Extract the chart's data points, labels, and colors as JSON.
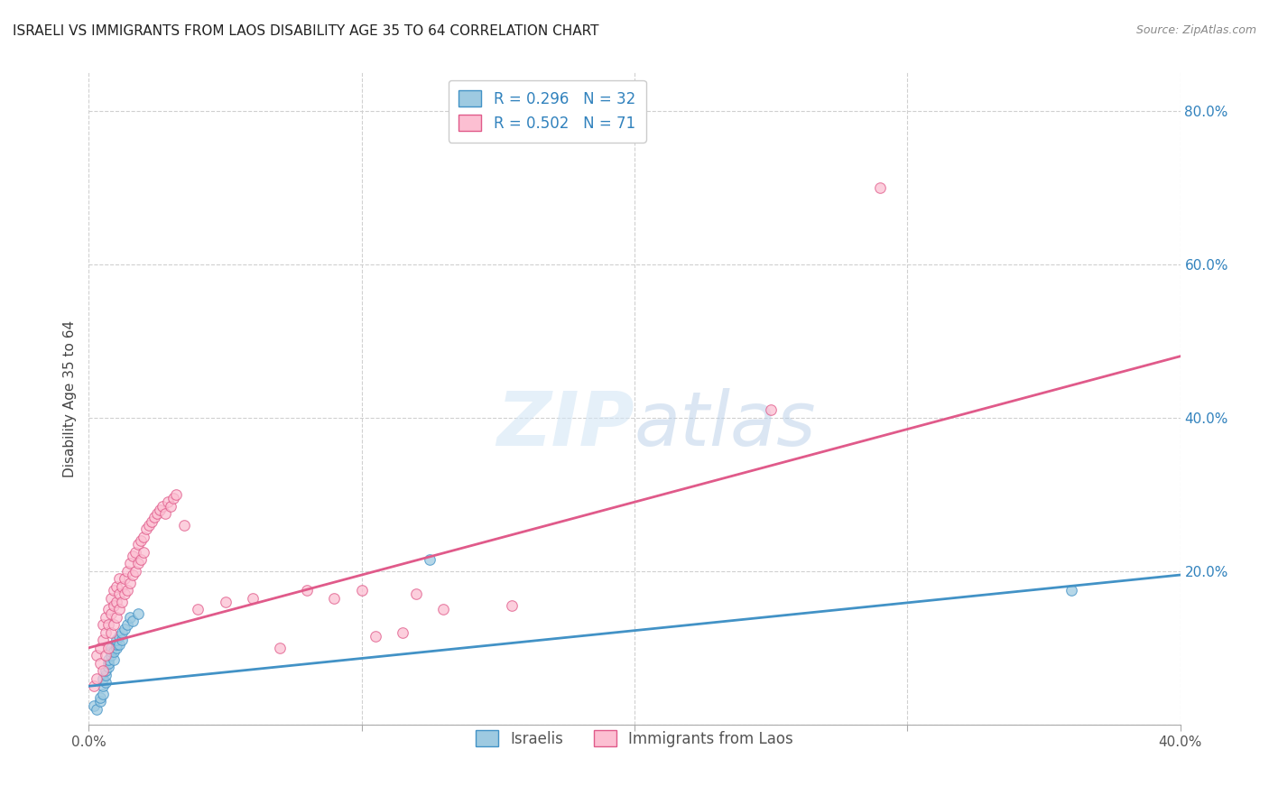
{
  "title": "ISRAELI VS IMMIGRANTS FROM LAOS DISABILITY AGE 35 TO 64 CORRELATION CHART",
  "source": "Source: ZipAtlas.com",
  "ylabel": "Disability Age 35 to 64",
  "xlim": [
    0.0,
    0.4
  ],
  "ylim": [
    0.0,
    0.85
  ],
  "xticks": [
    0.0,
    0.1,
    0.2,
    0.3,
    0.4
  ],
  "xtick_labels": [
    "0.0%",
    "",
    "",
    "",
    "40.0%"
  ],
  "yticks": [
    0.0,
    0.2,
    0.4,
    0.6,
    0.8
  ],
  "ytick_labels_right": [
    "",
    "20.0%",
    "40.0%",
    "60.0%",
    "80.0%"
  ],
  "legend_label1": "Israelis",
  "legend_label2": "Immigrants from Laos",
  "R1": "0.296",
  "N1": "32",
  "R2": "0.502",
  "N2": "71",
  "color_blue": "#9ecae1",
  "color_pink": "#fcbfd2",
  "color_blue_line": "#4292c6",
  "color_pink_line": "#e05a8a",
  "color_blue_text": "#3182bd",
  "color_pink_text": "#e05a8a",
  "watermark_color": "#d4e6f5",
  "blue_points_x": [
    0.002,
    0.003,
    0.004,
    0.004,
    0.005,
    0.005,
    0.005,
    0.006,
    0.006,
    0.006,
    0.007,
    0.007,
    0.007,
    0.008,
    0.008,
    0.008,
    0.009,
    0.009,
    0.01,
    0.01,
    0.01,
    0.011,
    0.011,
    0.012,
    0.012,
    0.013,
    0.014,
    0.015,
    0.016,
    0.018,
    0.36,
    0.125
  ],
  "blue_points_y": [
    0.025,
    0.02,
    0.03,
    0.035,
    0.04,
    0.05,
    0.06,
    0.055,
    0.065,
    0.07,
    0.075,
    0.08,
    0.085,
    0.09,
    0.095,
    0.1,
    0.085,
    0.095,
    0.1,
    0.105,
    0.11,
    0.105,
    0.115,
    0.11,
    0.12,
    0.125,
    0.13,
    0.14,
    0.135,
    0.145,
    0.175,
    0.215
  ],
  "pink_points_x": [
    0.002,
    0.003,
    0.003,
    0.004,
    0.004,
    0.005,
    0.005,
    0.005,
    0.006,
    0.006,
    0.006,
    0.007,
    0.007,
    0.007,
    0.008,
    0.008,
    0.008,
    0.009,
    0.009,
    0.009,
    0.01,
    0.01,
    0.01,
    0.011,
    0.011,
    0.011,
    0.012,
    0.012,
    0.013,
    0.013,
    0.014,
    0.014,
    0.015,
    0.015,
    0.016,
    0.016,
    0.017,
    0.017,
    0.018,
    0.018,
    0.019,
    0.019,
    0.02,
    0.02,
    0.021,
    0.022,
    0.023,
    0.024,
    0.025,
    0.026,
    0.027,
    0.028,
    0.029,
    0.03,
    0.031,
    0.032,
    0.035,
    0.04,
    0.05,
    0.06,
    0.07,
    0.08,
    0.09,
    0.1,
    0.105,
    0.115,
    0.12,
    0.13,
    0.155,
    0.25,
    0.29
  ],
  "pink_points_y": [
    0.05,
    0.06,
    0.09,
    0.08,
    0.1,
    0.07,
    0.11,
    0.13,
    0.09,
    0.12,
    0.14,
    0.1,
    0.13,
    0.15,
    0.12,
    0.145,
    0.165,
    0.13,
    0.155,
    0.175,
    0.14,
    0.16,
    0.18,
    0.15,
    0.17,
    0.19,
    0.16,
    0.18,
    0.17,
    0.19,
    0.175,
    0.2,
    0.185,
    0.21,
    0.195,
    0.22,
    0.2,
    0.225,
    0.21,
    0.235,
    0.215,
    0.24,
    0.225,
    0.245,
    0.255,
    0.26,
    0.265,
    0.27,
    0.275,
    0.28,
    0.285,
    0.275,
    0.29,
    0.285,
    0.295,
    0.3,
    0.26,
    0.15,
    0.16,
    0.165,
    0.1,
    0.175,
    0.165,
    0.175,
    0.115,
    0.12,
    0.17,
    0.15,
    0.155,
    0.41,
    0.7
  ],
  "blue_line_x": [
    0.0,
    0.4
  ],
  "blue_line_y": [
    0.05,
    0.195
  ],
  "pink_line_x": [
    0.0,
    0.4
  ],
  "pink_line_y": [
    0.1,
    0.48
  ]
}
